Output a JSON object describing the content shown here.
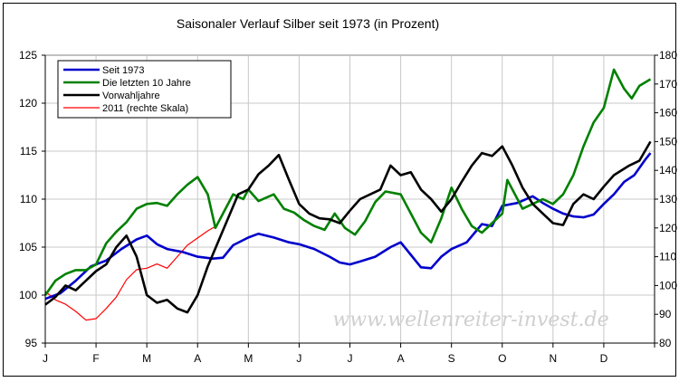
{
  "chart_data": {
    "type": "line",
    "title": "Saisonaler Verlauf Silber seit 1973 (in Prozent)",
    "watermark": "www.wellenreiter-invest.de",
    "left_axis": {
      "min": 95,
      "max": 125,
      "ticks": [
        "95",
        "100",
        "105",
        "110",
        "115",
        "120",
        "125"
      ]
    },
    "right_axis": {
      "min": 80,
      "max": 180,
      "ticks": [
        "80",
        "90",
        "100",
        "110",
        "120",
        "130",
        "140",
        "150",
        "160",
        "170",
        "180"
      ]
    },
    "x_labels": [
      "J",
      "F",
      "M",
      "A",
      "M",
      "J",
      "J",
      "A",
      "S",
      "O",
      "N",
      "D"
    ],
    "grid": true,
    "legend_position": "top-left",
    "series": [
      {
        "name": "Seit 1973",
        "color": "#0000cc",
        "axis": "left",
        "points": [
          [
            0,
            99.6
          ],
          [
            0.3,
            100.2
          ],
          [
            0.6,
            101.5
          ],
          [
            0.9,
            103.0
          ],
          [
            1.2,
            103.6
          ],
          [
            1.5,
            104.8
          ],
          [
            1.8,
            105.8
          ],
          [
            2.0,
            106.2
          ],
          [
            2.2,
            105.3
          ],
          [
            2.4,
            104.8
          ],
          [
            2.7,
            104.5
          ],
          [
            3.0,
            104.0
          ],
          [
            3.3,
            103.8
          ],
          [
            3.5,
            103.9
          ],
          [
            3.7,
            105.2
          ],
          [
            4.0,
            106.0
          ],
          [
            4.2,
            106.4
          ],
          [
            4.5,
            106.0
          ],
          [
            4.8,
            105.5
          ],
          [
            5.0,
            105.3
          ],
          [
            5.3,
            104.8
          ],
          [
            5.6,
            104.0
          ],
          [
            5.8,
            103.4
          ],
          [
            6.0,
            103.2
          ],
          [
            6.2,
            103.5
          ],
          [
            6.5,
            104.0
          ],
          [
            6.8,
            105.0
          ],
          [
            7.0,
            105.5
          ],
          [
            7.2,
            104.2
          ],
          [
            7.4,
            102.9
          ],
          [
            7.6,
            102.8
          ],
          [
            7.8,
            104.0
          ],
          [
            8.0,
            104.8
          ],
          [
            8.3,
            105.5
          ],
          [
            8.6,
            107.4
          ],
          [
            8.8,
            107.2
          ],
          [
            9.0,
            109.3
          ],
          [
            9.3,
            109.6
          ],
          [
            9.6,
            110.3
          ],
          [
            9.8,
            109.6
          ],
          [
            10.0,
            109.0
          ],
          [
            10.2,
            108.5
          ],
          [
            10.4,
            108.2
          ],
          [
            10.6,
            108.1
          ],
          [
            10.8,
            108.4
          ],
          [
            11.0,
            109.5
          ],
          [
            11.2,
            110.5
          ],
          [
            11.4,
            111.8
          ],
          [
            11.6,
            112.5
          ],
          [
            11.8,
            114.0
          ],
          [
            11.92,
            114.8
          ]
        ]
      },
      {
        "name": "Die letzten 10 Jahre",
        "color": "#008000",
        "axis": "left",
        "points": [
          [
            0,
            100.0
          ],
          [
            0.2,
            101.5
          ],
          [
            0.4,
            102.2
          ],
          [
            0.6,
            102.6
          ],
          [
            0.8,
            102.6
          ],
          [
            1.0,
            103.2
          ],
          [
            1.2,
            105.4
          ],
          [
            1.4,
            106.6
          ],
          [
            1.6,
            107.6
          ],
          [
            1.8,
            109.0
          ],
          [
            2.0,
            109.5
          ],
          [
            2.2,
            109.6
          ],
          [
            2.4,
            109.3
          ],
          [
            2.6,
            110.5
          ],
          [
            2.8,
            111.5
          ],
          [
            3.0,
            112.3
          ],
          [
            3.2,
            110.5
          ],
          [
            3.35,
            107.0
          ],
          [
            3.5,
            108.5
          ],
          [
            3.7,
            110.5
          ],
          [
            3.9,
            110.0
          ],
          [
            4.0,
            111.0
          ],
          [
            4.2,
            109.8
          ],
          [
            4.5,
            110.5
          ],
          [
            4.7,
            109.0
          ],
          [
            4.9,
            108.6
          ],
          [
            5.1,
            107.8
          ],
          [
            5.3,
            107.2
          ],
          [
            5.5,
            106.8
          ],
          [
            5.7,
            108.5
          ],
          [
            5.9,
            107.0
          ],
          [
            6.1,
            106.3
          ],
          [
            6.3,
            107.7
          ],
          [
            6.5,
            109.7
          ],
          [
            6.7,
            110.8
          ],
          [
            7.0,
            110.5
          ],
          [
            7.2,
            108.5
          ],
          [
            7.4,
            106.5
          ],
          [
            7.6,
            105.5
          ],
          [
            7.8,
            108.0
          ],
          [
            8.0,
            111.2
          ],
          [
            8.2,
            109.0
          ],
          [
            8.4,
            107.2
          ],
          [
            8.6,
            106.5
          ],
          [
            8.8,
            107.5
          ],
          [
            9.0,
            108.5
          ],
          [
            9.1,
            112.0
          ],
          [
            9.2,
            111.0
          ],
          [
            9.4,
            109.0
          ],
          [
            9.6,
            109.5
          ],
          [
            9.8,
            110.0
          ],
          [
            10.0,
            109.5
          ],
          [
            10.2,
            110.5
          ],
          [
            10.4,
            112.5
          ],
          [
            10.6,
            115.5
          ],
          [
            10.8,
            118.0
          ],
          [
            11.0,
            119.5
          ],
          [
            11.2,
            123.5
          ],
          [
            11.4,
            121.5
          ],
          [
            11.55,
            120.5
          ],
          [
            11.7,
            121.8
          ],
          [
            11.92,
            122.5
          ]
        ]
      },
      {
        "name": "Vorwahljahre",
        "color": "#000000",
        "axis": "left",
        "points": [
          [
            0,
            99.0
          ],
          [
            0.2,
            99.8
          ],
          [
            0.4,
            101.0
          ],
          [
            0.6,
            100.5
          ],
          [
            0.8,
            101.5
          ],
          [
            1.0,
            102.5
          ],
          [
            1.2,
            103.2
          ],
          [
            1.4,
            105.0
          ],
          [
            1.6,
            106.2
          ],
          [
            1.8,
            104.0
          ],
          [
            2.0,
            100.0
          ],
          [
            2.2,
            99.2
          ],
          [
            2.4,
            99.5
          ],
          [
            2.6,
            98.6
          ],
          [
            2.8,
            98.2
          ],
          [
            3.0,
            100.0
          ],
          [
            3.2,
            103.0
          ],
          [
            3.4,
            105.5
          ],
          [
            3.6,
            108.0
          ],
          [
            3.8,
            110.5
          ],
          [
            4.0,
            111.0
          ],
          [
            4.2,
            112.6
          ],
          [
            4.4,
            113.5
          ],
          [
            4.6,
            114.6
          ],
          [
            4.8,
            112.0
          ],
          [
            5.0,
            109.5
          ],
          [
            5.2,
            108.5
          ],
          [
            5.4,
            108.0
          ],
          [
            5.6,
            107.9
          ],
          [
            5.8,
            107.5
          ],
          [
            6.0,
            108.8
          ],
          [
            6.2,
            110.0
          ],
          [
            6.4,
            110.5
          ],
          [
            6.6,
            111.0
          ],
          [
            6.8,
            113.5
          ],
          [
            7.0,
            112.5
          ],
          [
            7.2,
            112.8
          ],
          [
            7.4,
            111.0
          ],
          [
            7.6,
            110.0
          ],
          [
            7.8,
            108.7
          ],
          [
            8.0,
            110.0
          ],
          [
            8.2,
            111.8
          ],
          [
            8.4,
            113.5
          ],
          [
            8.6,
            114.8
          ],
          [
            8.8,
            114.5
          ],
          [
            9.0,
            115.5
          ],
          [
            9.2,
            113.5
          ],
          [
            9.4,
            111.2
          ],
          [
            9.6,
            109.5
          ],
          [
            9.8,
            108.5
          ],
          [
            10.0,
            107.5
          ],
          [
            10.2,
            107.3
          ],
          [
            10.4,
            109.5
          ],
          [
            10.6,
            110.5
          ],
          [
            10.8,
            110.0
          ],
          [
            11.0,
            111.3
          ],
          [
            11.2,
            112.5
          ],
          [
            11.5,
            113.5
          ],
          [
            11.7,
            114.0
          ],
          [
            11.92,
            116.0
          ]
        ]
      },
      {
        "name": "2011 (rechte Skala)",
        "color": "#ff0000",
        "axis": "right",
        "points": [
          [
            0,
            98.0
          ],
          [
            0.2,
            95.0
          ],
          [
            0.4,
            93.5
          ],
          [
            0.6,
            91.0
          ],
          [
            0.8,
            88.0
          ],
          [
            1.0,
            88.5
          ],
          [
            1.2,
            92.0
          ],
          [
            1.4,
            96.0
          ],
          [
            1.6,
            102.0
          ],
          [
            1.8,
            105.5
          ],
          [
            2.0,
            106.0
          ],
          [
            2.2,
            107.5
          ],
          [
            2.4,
            106.0
          ],
          [
            2.6,
            110.0
          ],
          [
            2.8,
            114.0
          ],
          [
            3.0,
            116.5
          ],
          [
            3.2,
            119.0
          ],
          [
            3.4,
            121.0
          ]
        ]
      }
    ]
  }
}
